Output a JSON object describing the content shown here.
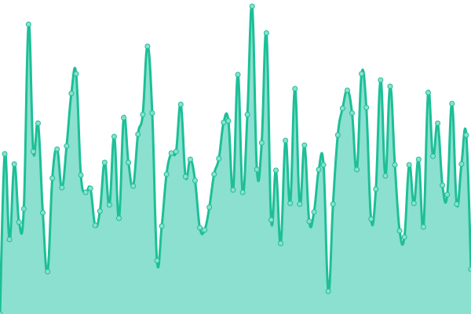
{
  "chart_data": {
    "type": "area",
    "title": "",
    "xlabel": "",
    "ylabel": "",
    "smoothed": true,
    "markers": true,
    "grid": false,
    "axes_visible": false,
    "ylim": [
      0,
      400
    ],
    "colors": {
      "line": "#1dbf97",
      "fill": "#8be0cf",
      "marker_fill": "#8be0cf",
      "marker_stroke": "#1dbf97"
    },
    "values": [
      0,
      204,
      95,
      191,
      117,
      134,
      369,
      207,
      243,
      129,
      54,
      173,
      210,
      161,
      214,
      281,
      306,
      177,
      155,
      160,
      113,
      131,
      193,
      139,
      226,
      122,
      250,
      193,
      163,
      229,
      254,
      341,
      256,
      68,
      112,
      178,
      205,
      207,
      267,
      175,
      197,
      170,
      110,
      107,
      136,
      178,
      198,
      244,
      246,
      158,
      305,
      155,
      254,
      392,
      184,
      218,
      358,
      120,
      183,
      90,
      221,
      141,
      287,
      140,
      215,
      118,
      130,
      184,
      190,
      29,
      140,
      228,
      262,
      285,
      256,
      184,
      306,
      263,
      121,
      159,
      298,
      176,
      290,
      190,
      106,
      98,
      190,
      141,
      197,
      111,
      282,
      201,
      243,
      164,
      152,
      268,
      140,
      191,
      228,
      57
    ]
  }
}
